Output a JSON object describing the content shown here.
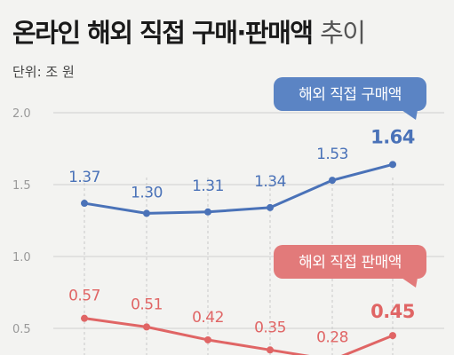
{
  "header": {
    "title_main": "온라인 해외 직접 구매·판매액",
    "title_suffix": "추이",
    "unit": "단위: 조 원"
  },
  "chart_data": {
    "type": "line",
    "title": "온라인 해외 직접 구매·판매액 추이",
    "ylabel": "단위: 조 원",
    "ylim": [
      0.3,
      2.0
    ],
    "yticks": [
      "2.0",
      "1.5",
      "1.0",
      "0.5"
    ],
    "grid": true,
    "series": [
      {
        "name": "해외 직접 구매액",
        "color": "#4a72b8",
        "label_bg": "#5b84c4",
        "values": [
          1.37,
          1.3,
          1.31,
          1.34,
          1.53,
          1.64
        ],
        "value_labels": [
          "1.37",
          "1.30",
          "1.31",
          "1.34",
          "1.53",
          "1.64"
        ]
      },
      {
        "name": "해외 직접 판매액",
        "color": "#e06565",
        "label_bg": "#e27a7a",
        "values": [
          0.57,
          0.51,
          0.42,
          0.35,
          0.28,
          0.45
        ],
        "value_labels": [
          "0.57",
          "0.51",
          "0.42",
          "0.35",
          "0.28",
          "0.45"
        ]
      }
    ]
  }
}
